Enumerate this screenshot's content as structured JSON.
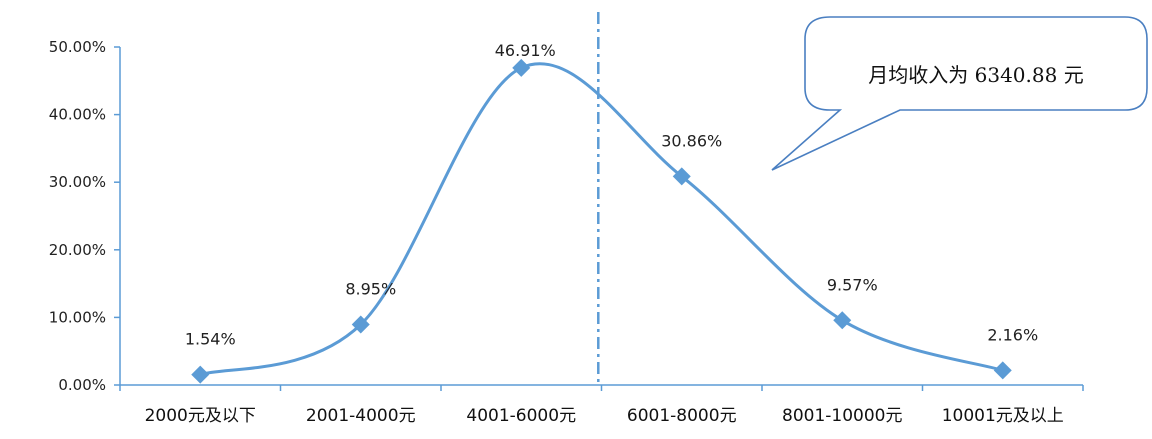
{
  "chart_data": {
    "type": "line",
    "categories": [
      "2000元及以下",
      "2001-4000元",
      "4001-6000元",
      "6001-8000元",
      "8001-10000元",
      "10001元及以上"
    ],
    "values": [
      1.54,
      8.95,
      46.91,
      30.86,
      9.57,
      2.16
    ],
    "data_labels": [
      "1.54%",
      "8.95%",
      "46.91%",
      "30.86%",
      "9.57%",
      "2.16%"
    ],
    "y_ticks": [
      "0.00%",
      "10.00%",
      "20.00%",
      "30.00%",
      "40.00%",
      "50.00%"
    ],
    "ylim": [
      0,
      50
    ],
    "mean_marker": {
      "value": 6340.88
    },
    "callout": "月均收入为 6340.88 元",
    "grid": false,
    "legend": "none",
    "colors": {
      "line": "#5b9bd5",
      "marker": "#5b9bd5",
      "mean_line": "#5b9bd5",
      "callout_border": "#4a7fc1",
      "axis": "#5b9bd5"
    }
  }
}
